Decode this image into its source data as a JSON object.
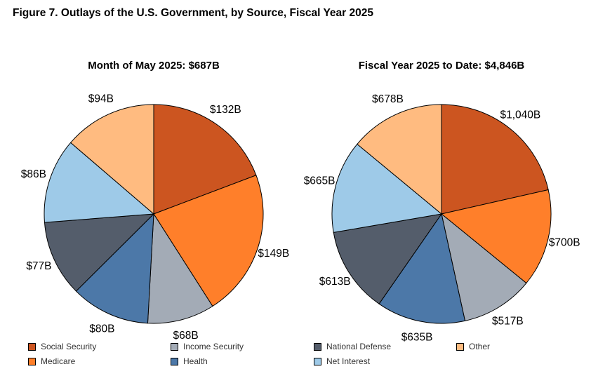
{
  "figure_title": "Figure 7. Outlays of the U.S. Government, by Source, Fiscal Year 2025",
  "colors": {
    "social_security": "#cc5520",
    "medicare": "#ff7f2a",
    "income_security": "#a3abb6",
    "health": "#4c78a8",
    "national_defense": "#545d6b",
    "net_interest": "#9ecae8",
    "other": "#ffbb80"
  },
  "legend": [
    {
      "label": "Social Security",
      "color": "#cc5520"
    },
    {
      "label": "Medicare",
      "color": "#ff7f2a"
    },
    {
      "label": "Income Security",
      "color": "#a3abb6"
    },
    {
      "label": "Health",
      "color": "#4c78a8"
    },
    {
      "label": "National Defense",
      "color": "#545d6b"
    },
    {
      "label": "Net Interest",
      "color": "#9ecae8"
    },
    {
      "label": "Other",
      "color": "#ffbb80"
    }
  ],
  "chart_data": [
    {
      "type": "pie",
      "title": "Month of May 2025: $687B",
      "categories": [
        "Social Security",
        "Medicare",
        "Income Security",
        "Health",
        "National Defense",
        "Net Interest",
        "Other"
      ],
      "values": [
        132,
        149,
        68,
        80,
        77,
        86,
        94
      ],
      "data_labels": [
        "$132B",
        "$149B",
        "$68B",
        "$80B",
        "$77B",
        "$86B",
        "$94B"
      ],
      "units": "billions of dollars",
      "start_angle": "12 o'clock",
      "direction": "clockwise",
      "legend_position": "bottom"
    },
    {
      "type": "pie",
      "title": "Fiscal Year 2025 to Date: $4,846B",
      "categories": [
        "Social Security",
        "Medicare",
        "Income Security",
        "Health",
        "National Defense",
        "Net Interest",
        "Other"
      ],
      "values": [
        1040,
        700,
        517,
        635,
        613,
        665,
        678
      ],
      "data_labels": [
        "$1,040B",
        "$700B",
        "$517B",
        "$635B",
        "$613B",
        "$665B",
        "$678B"
      ],
      "units": "billions of dollars",
      "start_angle": "12 o'clock",
      "direction": "clockwise",
      "legend_position": "bottom"
    }
  ]
}
